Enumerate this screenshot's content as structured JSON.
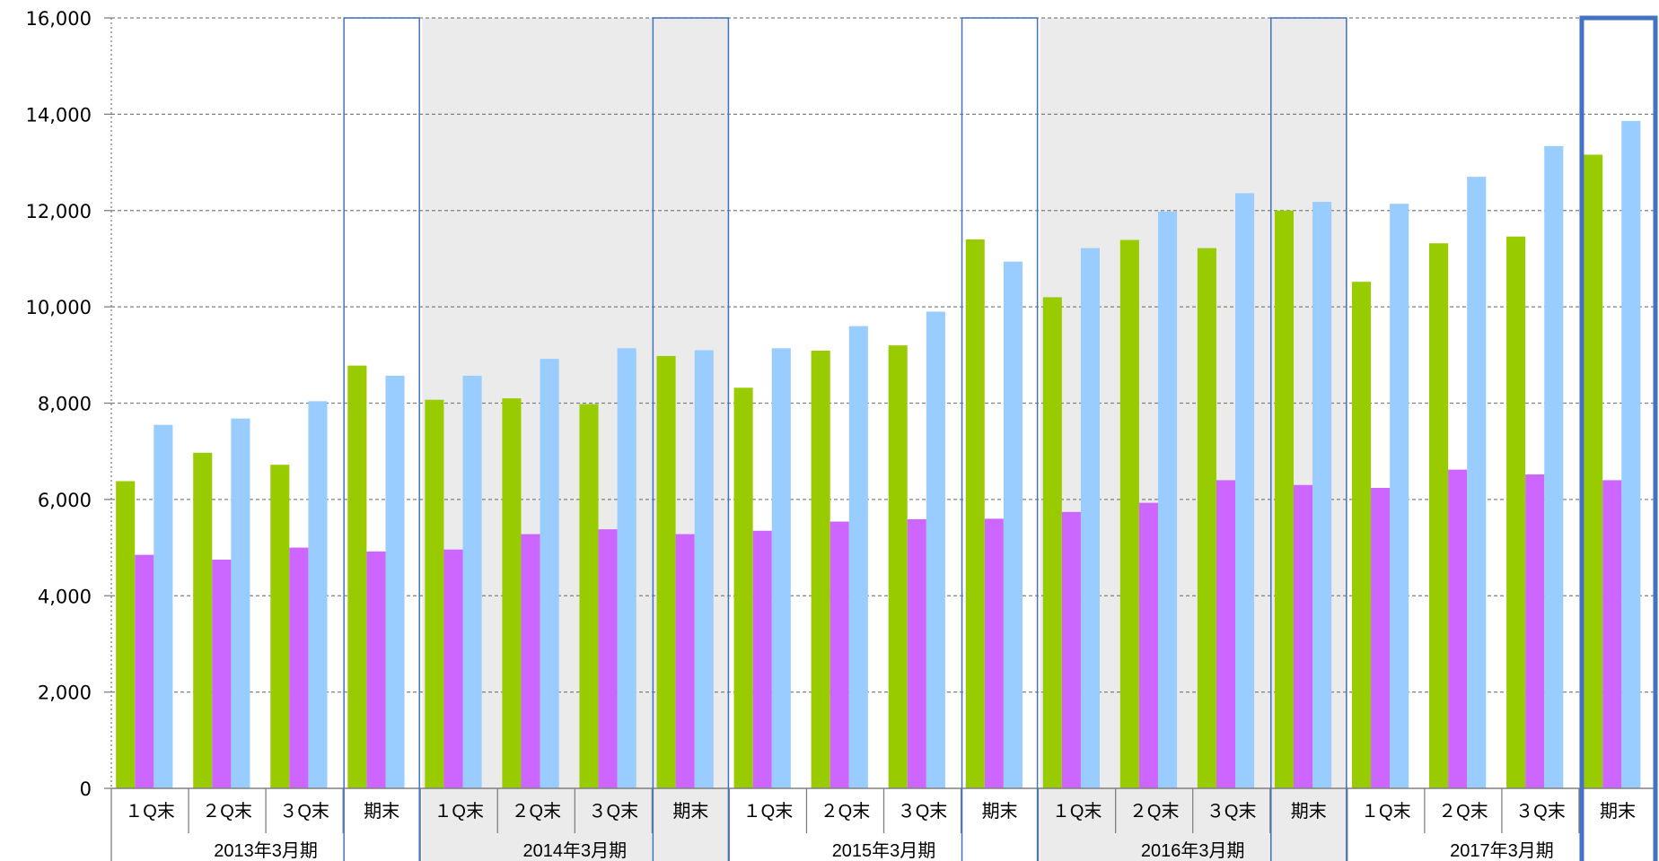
{
  "colors": {
    "series_green": "#99cc00",
    "series_purple": "#cc66ff",
    "series_blue": "#99ccff",
    "shade": "#ebebeb",
    "frame": "#4472c4",
    "grid": "#808080"
  },
  "chart_data": {
    "type": "bar",
    "ylim": [
      0,
      16000
    ],
    "yticks": [
      "0",
      "2,000",
      "4,000",
      "6,000",
      "8,000",
      "10,000",
      "12,000",
      "14,000",
      "16,000"
    ],
    "grid": true,
    "categories": [
      "１Q末",
      "２Q末",
      "３Q末",
      "期末",
      "１Q末",
      "２Q末",
      "３Q末",
      "期末",
      "１Q末",
      "２Q末",
      "３Q末",
      "期末",
      "１Q末",
      "２Q末",
      "３Q末",
      "期末",
      "１Q末",
      "２Q末",
      "３Q末",
      "期末"
    ],
    "groups": [
      {
        "label": "2013年3月期",
        "span": 4,
        "shaded": false
      },
      {
        "label": "2014年3月期",
        "span": 4,
        "shaded": true
      },
      {
        "label": "2015年3月期",
        "span": 4,
        "shaded": false
      },
      {
        "label": "2016年3月期",
        "span": 4,
        "shaded": true
      },
      {
        "label": "2017年3月期",
        "span": 4,
        "shaded": false
      }
    ],
    "series": [
      {
        "color": "#99cc00",
        "values": [
          6380,
          6970,
          6720,
          8780,
          8070,
          8100,
          7980,
          8980,
          8320,
          9090,
          9200,
          11400,
          10200,
          11390,
          11220,
          12000,
          10520,
          11320,
          11460,
          13160
        ]
      },
      {
        "color": "#cc66ff",
        "values": [
          4850,
          4750,
          5000,
          4920,
          4960,
          5280,
          5380,
          5280,
          5350,
          5540,
          5590,
          5600,
          5740,
          5930,
          6400,
          6300,
          6240,
          6620,
          6520,
          6400
        ]
      },
      {
        "color": "#99ccff",
        "values": [
          7550,
          7680,
          8040,
          8570,
          8570,
          8920,
          9140,
          9100,
          9140,
          9600,
          9900,
          10940,
          11220,
          11980,
          12360,
          12180,
          12140,
          12700,
          13340,
          13860
        ]
      }
    ]
  }
}
